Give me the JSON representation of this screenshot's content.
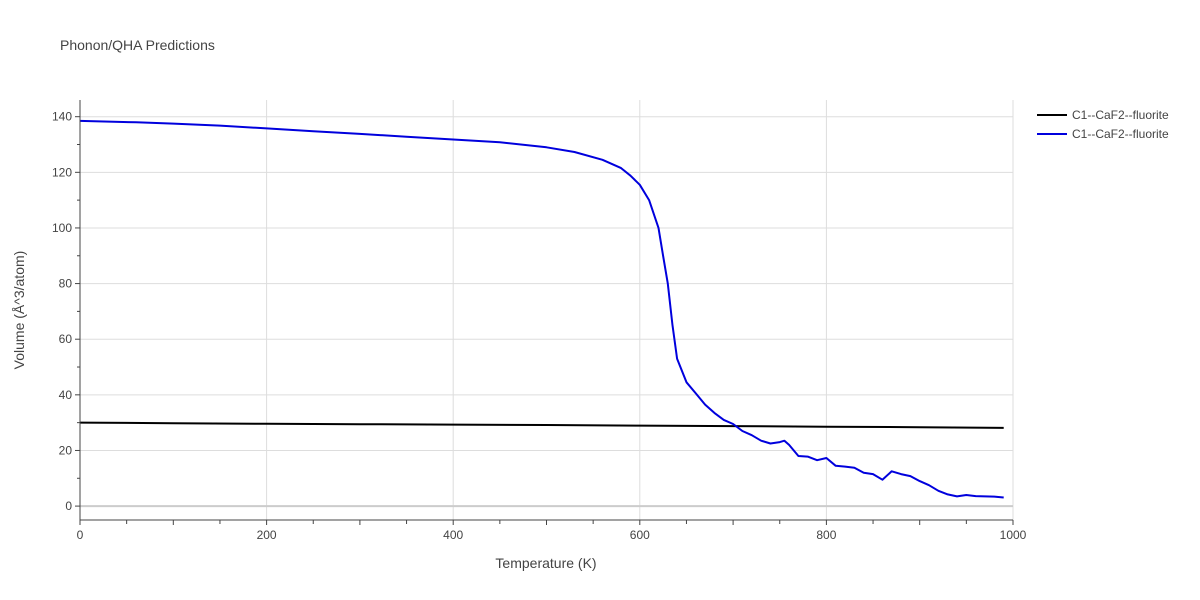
{
  "chart_data": {
    "type": "line",
    "title": "Phonon/QHA Predictions",
    "xlabel": "Temperature (K)",
    "ylabel": "Volume (Å^3/atom)",
    "xlim": [
      0,
      1000
    ],
    "ylim": [
      -5,
      146
    ],
    "x_ticks": [
      0,
      200,
      400,
      600,
      800,
      1000
    ],
    "y_ticks": [
      0,
      20,
      40,
      60,
      80,
      100,
      120,
      140
    ],
    "grid": true,
    "legend_position": "top-right",
    "series": [
      {
        "name": "C1--CaF2--fluorite",
        "color": "#000000",
        "x": [
          0,
          100,
          200,
          300,
          400,
          500,
          600,
          700,
          800,
          900,
          990
        ],
        "y": [
          30.0,
          29.8,
          29.6,
          29.45,
          29.3,
          29.15,
          28.95,
          28.75,
          28.55,
          28.35,
          28.1
        ]
      },
      {
        "name": "C1--CaF2--fluorite",
        "color": "#0000dd",
        "x": [
          0,
          60,
          100,
          150,
          200,
          250,
          300,
          350,
          400,
          450,
          500,
          530,
          560,
          580,
          590,
          600,
          610,
          620,
          625,
          630,
          635,
          640,
          650,
          660,
          670,
          680,
          690,
          700,
          710,
          720,
          730,
          740,
          750,
          755,
          760,
          770,
          780,
          790,
          800,
          810,
          820,
          830,
          840,
          850,
          860,
          870,
          880,
          890,
          900,
          910,
          920,
          930,
          940,
          950,
          960,
          970,
          980,
          990
        ],
        "y": [
          138.5,
          138.0,
          137.5,
          136.8,
          135.8,
          134.8,
          133.8,
          132.8,
          131.8,
          130.8,
          129.0,
          127.3,
          124.5,
          121.5,
          118.8,
          115.5,
          110.0,
          100.0,
          90.0,
          80.0,
          65.0,
          53.0,
          44.5,
          40.5,
          36.5,
          33.5,
          31.0,
          29.5,
          27.0,
          25.5,
          23.5,
          22.5,
          23.0,
          23.5,
          22.0,
          18.0,
          17.8,
          16.5,
          17.3,
          14.5,
          14.2,
          13.8,
          12.0,
          11.5,
          9.5,
          12.5,
          11.5,
          10.8,
          9.0,
          7.5,
          5.5,
          4.2,
          3.5,
          4.0,
          3.6,
          3.5,
          3.4,
          3.1
        ]
      }
    ]
  }
}
